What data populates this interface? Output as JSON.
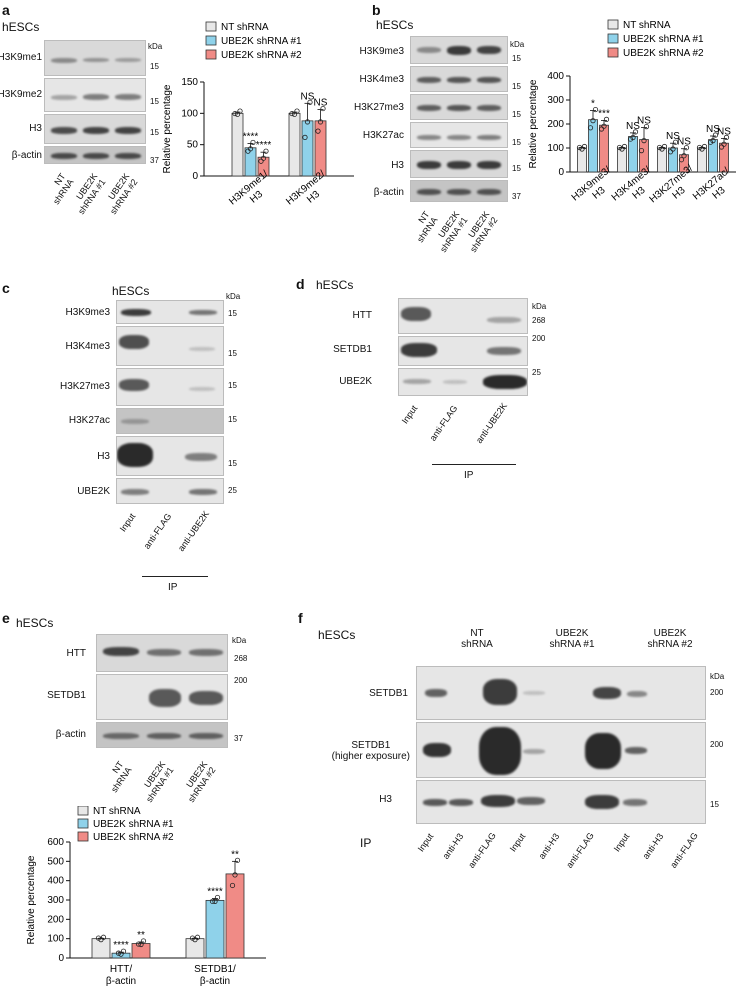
{
  "colors": {
    "nt": "#e8e8e8",
    "sh1": "#8fd2ea",
    "sh2": "#f08b86"
  },
  "legend": [
    "NT shRNA",
    "UBE2K shRNA #1",
    "UBE2K shRNA #2"
  ],
  "kda": "kDa",
  "ip": "IP",
  "panels": {
    "a": {
      "label": "a",
      "title": "hESCs",
      "rows": [
        "H3K9me1",
        "H3K9me2",
        "H3",
        "β-actin"
      ],
      "mw": [
        "15",
        "15",
        "15",
        "37"
      ],
      "lanes": [
        "NT\nshRNA",
        "UBE2K\nshRNA #1",
        "UBE2K\nshRNA #2"
      ]
    },
    "b": {
      "label": "b",
      "title": "hESCs",
      "rows": [
        "H3K9me3",
        "H3K4me3",
        "H3K27me3",
        "H3K27ac",
        "H3",
        "β-actin"
      ],
      "mw": [
        "15",
        "15",
        "15",
        "15",
        "15",
        "37"
      ],
      "lanes": [
        "NT\nshRNA",
        "UBE2K\nshRNA #1",
        "UBE2K\nshRNA #2"
      ]
    },
    "c": {
      "label": "c",
      "title": "hESCs",
      "rows": [
        "H3K9me3",
        "H3K4me3",
        "H3K27me3",
        "H3K27ac",
        "H3",
        "UBE2K"
      ],
      "mw": [
        "15",
        "15",
        "15",
        "15",
        "15",
        "25"
      ],
      "lanes": [
        "Input",
        "anti-FLAG",
        "anti-UBE2K"
      ]
    },
    "d": {
      "label": "d",
      "title": "hESCs",
      "rows": [
        "HTT",
        "SETDB1",
        "UBE2K"
      ],
      "mw": [
        "268",
        "200",
        "25"
      ],
      "lanes": [
        "Input",
        "anti-FLAG",
        "anti-UBE2K"
      ]
    },
    "e": {
      "label": "e",
      "title": "hESCs",
      "rows": [
        "HTT",
        "SETDB1",
        "β-actin"
      ],
      "mw": [
        "268",
        "200",
        "37"
      ],
      "lanes": [
        "NT\nshRNA",
        "UBE2K\nshRNA #1",
        "UBE2K\nshRNA #2"
      ]
    },
    "f": {
      "label": "f",
      "title": "hESCs",
      "groups": [
        "NT\nshRNA",
        "UBE2K\nshRNA #1",
        "UBE2K\nshRNA #2"
      ],
      "rows": [
        "SETDB1",
        "SETDB1\n(higher exposure)",
        "H3"
      ],
      "mw": [
        "200",
        "200",
        "15"
      ],
      "lanes": [
        "Input",
        "anti-H3",
        "anti-FLAG"
      ]
    }
  },
  "chart_data": [
    {
      "type": "bar",
      "panel": "a",
      "categories": [
        "H3K9me1/\nH3",
        "H3K9me2/\nH3"
      ],
      "series": [
        {
          "name": "NT shRNA",
          "values": [
            100,
            100
          ],
          "err": [
            2,
            2
          ]
        },
        {
          "name": "UBE2K shRNA #1",
          "values": [
            45,
            88
          ],
          "err": [
            7,
            28
          ]
        },
        {
          "name": "UBE2K shRNA #2",
          "values": [
            30,
            88
          ],
          "err": [
            8,
            18
          ]
        }
      ],
      "ylabel": "Relative percentage",
      "ylim": [
        0,
        150
      ],
      "yticks": [
        0,
        50,
        100,
        150
      ],
      "annotations": [
        [
          "",
          "****",
          "****"
        ],
        [
          "",
          "NS",
          "NS"
        ]
      ]
    },
    {
      "type": "bar",
      "panel": "b",
      "categories": [
        "H3K9me3/\nH3",
        "H3K4me3/\nH3",
        "H3K27me3/\nH3",
        "H3K27ac/\nH3"
      ],
      "series": [
        {
          "name": "NT shRNA",
          "values": [
            100,
            100,
            100,
            100
          ],
          "err": [
            2,
            2,
            2,
            2
          ]
        },
        {
          "name": "UBE2K shRNA #1",
          "values": [
            218,
            148,
            100,
            135
          ],
          "err": [
            38,
            15,
            20,
            15
          ]
        },
        {
          "name": "UBE2K shRNA #2",
          "values": [
            195,
            135,
            72,
            120
          ],
          "err": [
            20,
            50,
            25,
            20
          ]
        }
      ],
      "ylabel": "Relative percentage",
      "ylim": [
        0,
        400
      ],
      "yticks": [
        0,
        100,
        200,
        300,
        400
      ],
      "annotations": [
        [
          "",
          "*",
          "***"
        ],
        [
          "",
          "NS",
          "NS"
        ],
        [
          "",
          "NS",
          "NS"
        ],
        [
          "",
          "NS",
          "NS"
        ]
      ]
    },
    {
      "type": "bar",
      "panel": "e",
      "categories": [
        "HTT/\nβ-actin",
        "SETDB1/\nβ-actin"
      ],
      "series": [
        {
          "name": "NT shRNA",
          "values": [
            100,
            100
          ],
          "err": [
            2,
            2
          ]
        },
        {
          "name": "UBE2K shRNA #1",
          "values": [
            25,
            298
          ],
          "err": [
            5,
            10
          ]
        },
        {
          "name": "UBE2K shRNA #2",
          "values": [
            75,
            435
          ],
          "err": [
            8,
            65
          ]
        }
      ],
      "ylabel": "Relative percentage",
      "ylim": [
        0,
        600
      ],
      "yticks": [
        0,
        100,
        200,
        300,
        400,
        500,
        600
      ],
      "annotations": [
        [
          "",
          "****",
          "**"
        ],
        [
          "",
          "****",
          "**"
        ]
      ]
    }
  ]
}
